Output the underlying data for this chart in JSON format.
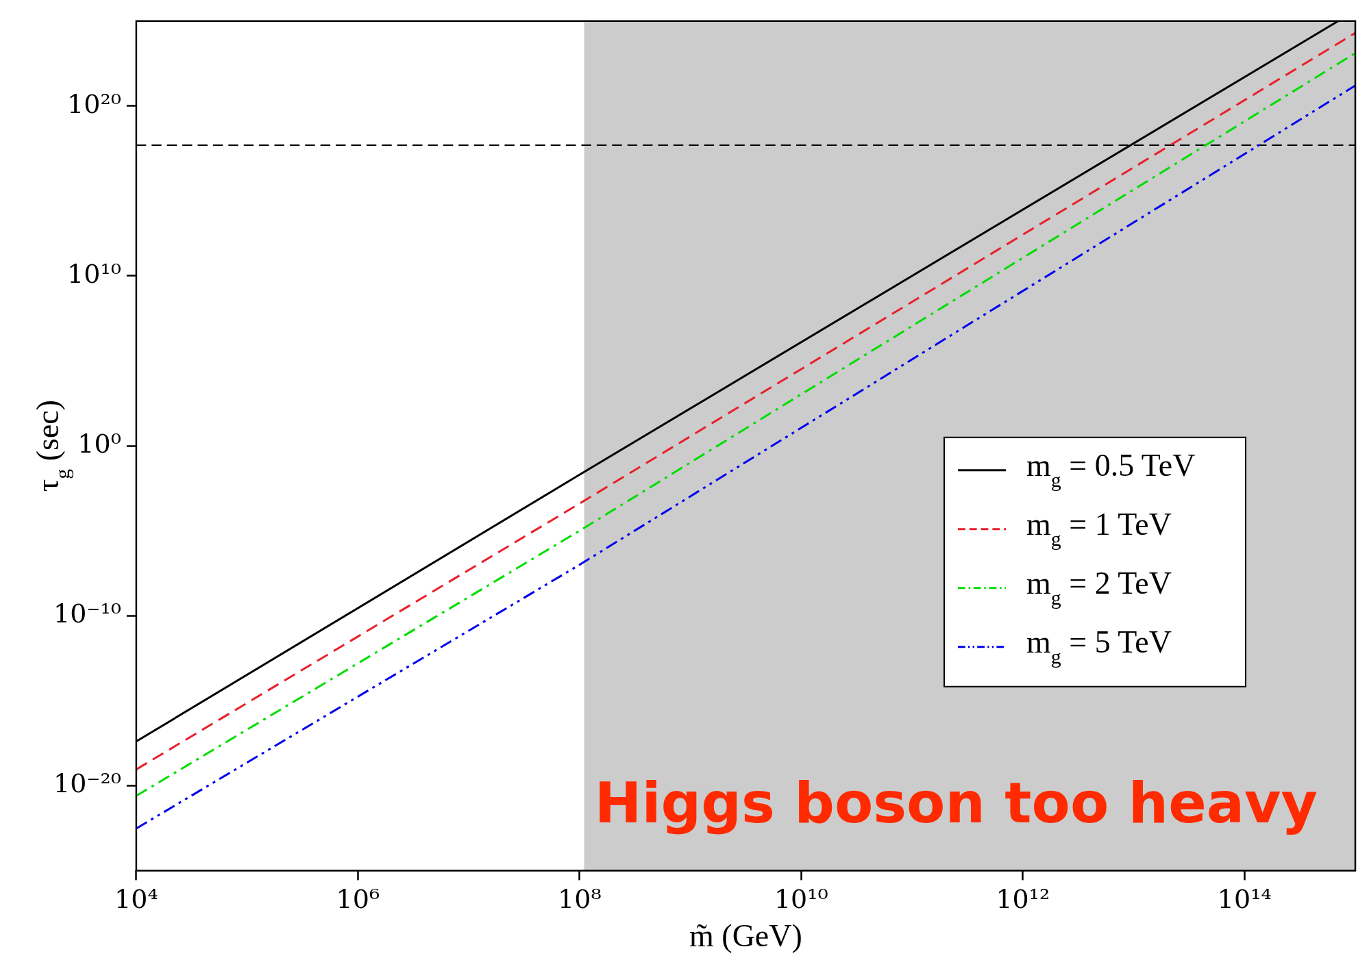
{
  "chart_data": {
    "type": "line",
    "xlabel": "m̃ (GeV)",
    "ylabel": "τ$_{g}$ (sec)",
    "log": "xy",
    "grid": false,
    "legend": "right",
    "marker": "none",
    "xlim": [
      10000.0,
      1000000000000000.0
    ],
    "ylim": [
      1e-25,
      1e+25
    ],
    "xticks": [
      {
        "value": 10000.0,
        "label": "10⁴"
      },
      {
        "value": 1000000.0,
        "label": "10⁶"
      },
      {
        "value": 100000000.0,
        "label": "10⁸"
      },
      {
        "value": 10000000000.0,
        "label": "10¹⁰"
      },
      {
        "value": 1000000000000.0,
        "label": "10¹²"
      },
      {
        "value": 100000000000000.0,
        "label": "10¹⁴"
      }
    ],
    "yticks": [
      {
        "value": 1e-20,
        "label": "10⁻²⁰"
      },
      {
        "value": 1e-10,
        "label": "10⁻¹⁰"
      },
      {
        "value": 1,
        "label": "10⁰"
      },
      {
        "value": 10000000000.0,
        "label": "10¹⁰"
      },
      {
        "value": 1e+20,
        "label": "10²⁰"
      }
    ],
    "series": [
      {
        "name": "m$_{g}$ = 0.5 TeV",
        "color": "#000000",
        "line_style": "solid",
        "x": [
          10000.0,
          100000000.0,
          700000000000000.0
        ],
        "values": [
          4e-18,
          0.02,
          1e+25
        ]
      },
      {
        "name": "m$_{g}$ = 1 TeV",
        "color": "#e8202a",
        "line_style": "dashed",
        "x": [
          10000.0,
          100000000.0,
          1000000000000000.0
        ],
        "values": [
          9e-20,
          0.0004,
          2e+24
        ]
      },
      {
        "name": "m$_{g}$ = 2 TeV",
        "color": "#00dd00",
        "line_style": "dashdot",
        "x": [
          10000.0,
          100000000.0,
          1000000000000000.0
        ],
        "values": [
          2.5e-21,
          1e-05,
          1.3e+23
        ]
      },
      {
        "name": "m$_{g}$ = 5 TeV",
        "color": "#0000ee",
        "line_style": "dashdotdot",
        "x": [
          10000.0,
          100000000.0,
          1000000000000000.0
        ],
        "values": [
          3e-23,
          1e-07,
          1.6e+21
        ]
      }
    ],
    "ref_lines": [
      {
        "axis": "y",
        "value": 5e+17,
        "color": "#000000",
        "line_style": "dashed"
      }
    ],
    "bands": [
      {
        "axis": "x",
        "from": 110000000.0,
        "to": 1000000000000000.0,
        "color": "#cccccc"
      }
    ],
    "annotations": [
      "Higgs boson too heavy"
    ]
  }
}
